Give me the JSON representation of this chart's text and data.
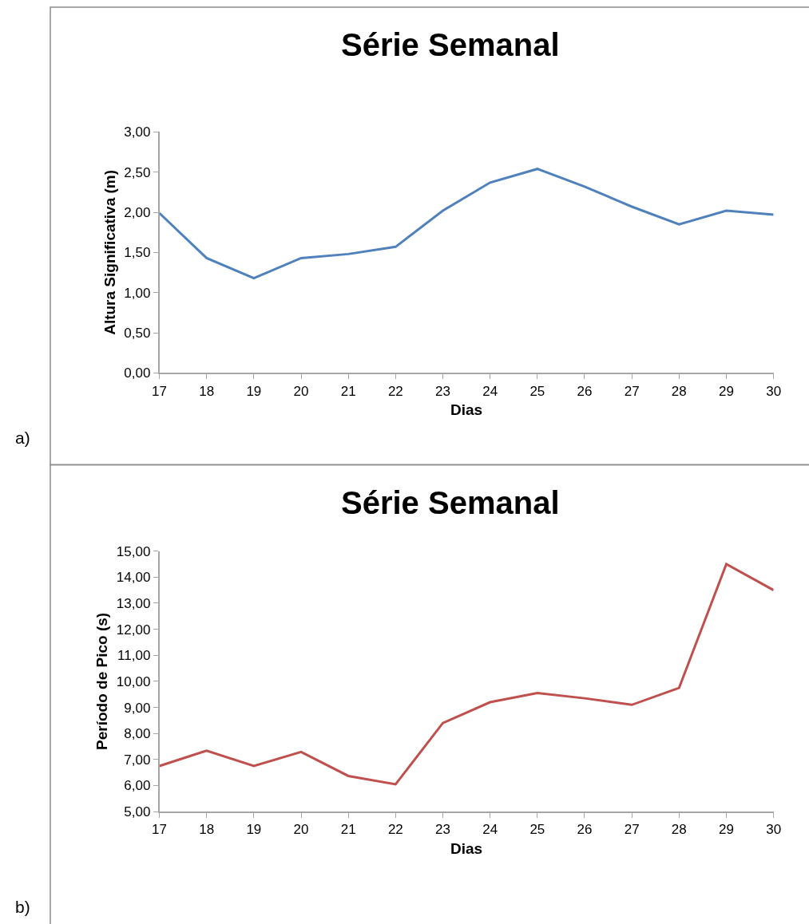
{
  "chart_data": [
    {
      "type": "line",
      "title": "Série Semanal",
      "xlabel": "Dias",
      "ylabel": "Altura Significativa (m)",
      "annotations": [
        "a)"
      ],
      "x": [
        17,
        18,
        19,
        20,
        21,
        22,
        23,
        24,
        25,
        26,
        27,
        28,
        29,
        30
      ],
      "series": [
        {
          "color": "#4f81bd",
          "values": [
            1.99,
            1.43,
            1.18,
            1.43,
            1.48,
            1.57,
            2.02,
            2.37,
            2.54,
            2.32,
            2.07,
            1.85,
            2.02,
            1.97
          ]
        }
      ],
      "xlim": [
        17,
        30
      ],
      "xticks": [
        17,
        18,
        19,
        20,
        21,
        22,
        23,
        24,
        25,
        26,
        27,
        28,
        29,
        30
      ],
      "ylim": [
        0,
        3
      ],
      "yticks": [
        {
          "value": 0,
          "label": "0,00"
        },
        {
          "value": 0.5,
          "label": "0,50"
        },
        {
          "value": 1,
          "label": "1,00"
        },
        {
          "value": 1.5,
          "label": "1,50"
        },
        {
          "value": 2,
          "label": "2,00"
        },
        {
          "value": 2.5,
          "label": "2,50"
        },
        {
          "value": 3,
          "label": "3,00"
        }
      ],
      "marker": "none",
      "line_style": "solid"
    },
    {
      "type": "line",
      "title": "Série Semanal",
      "xlabel": "Dias",
      "ylabel": "Período de Pico (s)",
      "annotations": [
        "b)"
      ],
      "x": [
        17,
        18,
        19,
        20,
        21,
        22,
        23,
        24,
        25,
        26,
        27,
        28,
        29,
        30
      ],
      "series": [
        {
          "color": "#c0504d",
          "values": [
            6.75,
            7.34,
            6.75,
            7.29,
            6.37,
            6.05,
            8.4,
            9.2,
            9.55,
            9.35,
            9.1,
            9.75,
            14.5,
            13.5
          ]
        }
      ],
      "xlim": [
        17,
        30
      ],
      "xticks": [
        17,
        18,
        19,
        20,
        21,
        22,
        23,
        24,
        25,
        26,
        27,
        28,
        29,
        30
      ],
      "ylim": [
        5,
        15
      ],
      "yticks": [
        {
          "value": 5,
          "label": "5,00"
        },
        {
          "value": 6,
          "label": "6,00"
        },
        {
          "value": 7,
          "label": "7,00"
        },
        {
          "value": 8,
          "label": "8,00"
        },
        {
          "value": 9,
          "label": "9,00"
        },
        {
          "value": 10,
          "label": "10,00"
        },
        {
          "value": 11,
          "label": "11,00"
        },
        {
          "value": 12,
          "label": "12,00"
        },
        {
          "value": 13,
          "label": "13,00"
        },
        {
          "value": 14,
          "label": "14,00"
        },
        {
          "value": 15,
          "label": "15,00"
        }
      ],
      "marker": "none",
      "line_style": "solid"
    }
  ]
}
